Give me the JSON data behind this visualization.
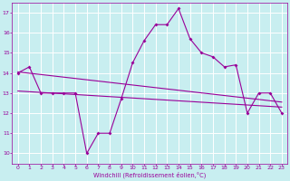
{
  "xlabel": "Windchill (Refroidissement éolien,°C)",
  "bg_color": "#c8eef0",
  "line_color": "#990099",
  "grid_color": "#ffffff",
  "xlim": [
    -0.5,
    23.5
  ],
  "ylim": [
    9.5,
    17.5
  ],
  "yticks": [
    10,
    11,
    12,
    13,
    14,
    15,
    16,
    17
  ],
  "xticks": [
    0,
    1,
    2,
    3,
    4,
    5,
    6,
    7,
    8,
    9,
    10,
    11,
    12,
    13,
    14,
    15,
    16,
    17,
    18,
    19,
    20,
    21,
    22,
    23
  ],
  "line1_x": [
    0,
    1,
    2,
    3,
    4,
    5,
    6,
    7,
    8,
    9,
    10,
    11,
    12,
    13,
    14,
    15,
    16,
    17,
    18,
    19,
    20,
    21,
    22,
    23
  ],
  "line1_y": [
    14.0,
    14.3,
    13.0,
    13.0,
    13.0,
    13.0,
    10.0,
    11.0,
    11.0,
    12.7,
    14.5,
    15.6,
    16.4,
    16.4,
    17.2,
    15.7,
    15.0,
    14.8,
    14.3,
    14.4,
    12.0,
    13.0,
    13.0,
    12.0
  ],
  "line2_x": [
    0,
    23
  ],
  "line2_y": [
    14.05,
    12.55
  ],
  "line3_x": [
    0,
    23
  ],
  "line3_y": [
    13.1,
    12.3
  ]
}
